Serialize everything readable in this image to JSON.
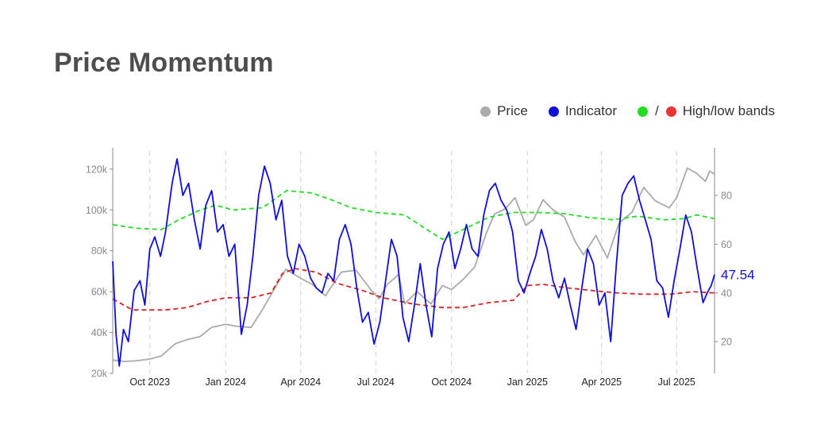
{
  "title": "Price Momentum",
  "legend": {
    "price": "Price",
    "indicator": "Indicator",
    "bands_sep": "/",
    "bands": "High/low bands"
  },
  "colors": {
    "price": "#aaaaaa",
    "indicator": "#0d10d4",
    "high_band": "#22dd22",
    "low_band": "#dd2222",
    "grid": "#d0d0d0"
  },
  "chart_data": {
    "type": "line",
    "x_start": "2023-08-17",
    "x_end": "2025-08-16",
    "x_ticks": [
      {
        "date": "2023-10-01",
        "label": "Oct 2023"
      },
      {
        "date": "2024-01-01",
        "label": "Jan 2024"
      },
      {
        "date": "2024-04-01",
        "label": "Apr 2024"
      },
      {
        "date": "2024-07-01",
        "label": "Jul 2024"
      },
      {
        "date": "2024-10-01",
        "label": "Oct 2024"
      },
      {
        "date": "2025-01-01",
        "label": "Jan 2025"
      },
      {
        "date": "2025-04-01",
        "label": "Apr 2025"
      },
      {
        "date": "2025-07-01",
        "label": "Jul 2025"
      }
    ],
    "y_left": {
      "ylim": [
        20000,
        125000
      ],
      "ticks": [
        20000,
        40000,
        60000,
        80000,
        100000,
        120000
      ],
      "tick_labels": [
        "20k",
        "40k",
        "60k",
        "80k",
        "100k",
        "120k"
      ]
    },
    "y_right": {
      "ylim": [
        7,
        95
      ],
      "ticks": [
        20,
        40,
        60,
        80
      ],
      "tick_labels": [
        "20",
        "40",
        "60",
        "80"
      ]
    },
    "grid": "vertical dashed at x ticks",
    "legend_position": "top-right",
    "last_value_label": "47.54",
    "series": [
      {
        "name": "Price",
        "axis": "left",
        "points": [
          [
            "2023-08-17",
            26500
          ],
          [
            "2023-09-01",
            25800
          ],
          [
            "2023-09-15",
            26200
          ],
          [
            "2023-10-01",
            27000
          ],
          [
            "2023-10-15",
            28500
          ],
          [
            "2023-11-01",
            34500
          ],
          [
            "2023-11-15",
            36500
          ],
          [
            "2023-12-01",
            38000
          ],
          [
            "2023-12-15",
            42500
          ],
          [
            "2024-01-01",
            44000
          ],
          [
            "2024-01-15",
            43000
          ],
          [
            "2024-02-01",
            42500
          ],
          [
            "2024-02-15",
            51500
          ],
          [
            "2024-03-01",
            62000
          ],
          [
            "2024-03-14",
            71000
          ],
          [
            "2024-04-01",
            66500
          ],
          [
            "2024-04-15",
            63500
          ],
          [
            "2024-05-01",
            58000
          ],
          [
            "2024-05-20",
            69500
          ],
          [
            "2024-06-07",
            70500
          ],
          [
            "2024-06-25",
            61000
          ],
          [
            "2024-07-05",
            56500
          ],
          [
            "2024-07-15",
            63500
          ],
          [
            "2024-07-29",
            68500
          ],
          [
            "2024-08-05",
            54000
          ],
          [
            "2024-08-20",
            60000
          ],
          [
            "2024-09-06",
            54000
          ],
          [
            "2024-09-20",
            63000
          ],
          [
            "2024-10-01",
            61000
          ],
          [
            "2024-10-15",
            66000
          ],
          [
            "2024-10-29",
            72000
          ],
          [
            "2024-11-12",
            88500
          ],
          [
            "2024-11-22",
            98000
          ],
          [
            "2024-12-05",
            100500
          ],
          [
            "2024-12-17",
            106000
          ],
          [
            "2024-12-30",
            92500
          ],
          [
            "2025-01-08",
            95000
          ],
          [
            "2025-01-20",
            105000
          ],
          [
            "2025-02-01",
            100000
          ],
          [
            "2025-02-15",
            96500
          ],
          [
            "2025-02-28",
            84500
          ],
          [
            "2025-03-10",
            78000
          ],
          [
            "2025-03-25",
            87500
          ],
          [
            "2025-04-08",
            76500
          ],
          [
            "2025-04-22",
            93500
          ],
          [
            "2025-05-08",
            99000
          ],
          [
            "2025-05-22",
            111000
          ],
          [
            "2025-06-05",
            104500
          ],
          [
            "2025-06-22",
            101000
          ],
          [
            "2025-07-01",
            106000
          ],
          [
            "2025-07-14",
            120500
          ],
          [
            "2025-07-25",
            118000
          ],
          [
            "2025-08-05",
            114000
          ],
          [
            "2025-08-10",
            119000
          ],
          [
            "2025-08-16",
            117500
          ]
        ]
      },
      {
        "name": "Indicator",
        "axis": "right",
        "points": [
          [
            "2023-08-17",
            53
          ],
          [
            "2023-08-21",
            23
          ],
          [
            "2023-08-25",
            10
          ],
          [
            "2023-08-30",
            25
          ],
          [
            "2023-09-05",
            20
          ],
          [
            "2023-09-12",
            41
          ],
          [
            "2023-09-19",
            45
          ],
          [
            "2023-09-25",
            35
          ],
          [
            "2023-10-01",
            58
          ],
          [
            "2023-10-07",
            63
          ],
          [
            "2023-10-14",
            55
          ],
          [
            "2023-10-20",
            65
          ],
          [
            "2023-10-28",
            85
          ],
          [
            "2023-11-03",
            95
          ],
          [
            "2023-11-10",
            80
          ],
          [
            "2023-11-17",
            85
          ],
          [
            "2023-11-24",
            70
          ],
          [
            "2023-12-01",
            58
          ],
          [
            "2023-12-08",
            76
          ],
          [
            "2023-12-15",
            82
          ],
          [
            "2023-12-22",
            65
          ],
          [
            "2023-12-29",
            68
          ],
          [
            "2024-01-05",
            55
          ],
          [
            "2024-01-12",
            60
          ],
          [
            "2024-01-20",
            23
          ],
          [
            "2024-01-27",
            35
          ],
          [
            "2024-02-03",
            55
          ],
          [
            "2024-02-10",
            80
          ],
          [
            "2024-02-17",
            92
          ],
          [
            "2024-02-24",
            85
          ],
          [
            "2024-03-02",
            70
          ],
          [
            "2024-03-09",
            78
          ],
          [
            "2024-03-16",
            55
          ],
          [
            "2024-03-23",
            48
          ],
          [
            "2024-03-30",
            60
          ],
          [
            "2024-04-06",
            55
          ],
          [
            "2024-04-13",
            46
          ],
          [
            "2024-04-20",
            42
          ],
          [
            "2024-04-27",
            40
          ],
          [
            "2024-05-04",
            48
          ],
          [
            "2024-05-11",
            45
          ],
          [
            "2024-05-18",
            62
          ],
          [
            "2024-05-25",
            68
          ],
          [
            "2024-06-01",
            60
          ],
          [
            "2024-06-08",
            42
          ],
          [
            "2024-06-15",
            28
          ],
          [
            "2024-06-22",
            32
          ],
          [
            "2024-06-29",
            19
          ],
          [
            "2024-07-06",
            28
          ],
          [
            "2024-07-13",
            45
          ],
          [
            "2024-07-20",
            62
          ],
          [
            "2024-07-27",
            55
          ],
          [
            "2024-08-03",
            30
          ],
          [
            "2024-08-10",
            20
          ],
          [
            "2024-08-17",
            35
          ],
          [
            "2024-08-24",
            52
          ],
          [
            "2024-08-31",
            35
          ],
          [
            "2024-09-07",
            22
          ],
          [
            "2024-09-14",
            50
          ],
          [
            "2024-09-21",
            60
          ],
          [
            "2024-09-28",
            65
          ],
          [
            "2024-10-05",
            50
          ],
          [
            "2024-10-12",
            58
          ],
          [
            "2024-10-19",
            68
          ],
          [
            "2024-10-26",
            58
          ],
          [
            "2024-11-02",
            55
          ],
          [
            "2024-11-09",
            72
          ],
          [
            "2024-11-16",
            82
          ],
          [
            "2024-11-23",
            85
          ],
          [
            "2024-11-30",
            78
          ],
          [
            "2024-12-07",
            74
          ],
          [
            "2024-12-14",
            65
          ],
          [
            "2024-12-21",
            45
          ],
          [
            "2024-12-28",
            40
          ],
          [
            "2025-01-04",
            48
          ],
          [
            "2025-01-11",
            55
          ],
          [
            "2025-01-18",
            66
          ],
          [
            "2025-01-25",
            58
          ],
          [
            "2025-02-01",
            45
          ],
          [
            "2025-02-08",
            38
          ],
          [
            "2025-02-15",
            46
          ],
          [
            "2025-02-22",
            35
          ],
          [
            "2025-03-01",
            25
          ],
          [
            "2025-03-08",
            42
          ],
          [
            "2025-03-15",
            58
          ],
          [
            "2025-03-22",
            52
          ],
          [
            "2025-03-29",
            35
          ],
          [
            "2025-04-05",
            40
          ],
          [
            "2025-04-12",
            20
          ],
          [
            "2025-04-19",
            52
          ],
          [
            "2025-04-26",
            80
          ],
          [
            "2025-05-03",
            85
          ],
          [
            "2025-05-10",
            88
          ],
          [
            "2025-05-17",
            78
          ],
          [
            "2025-05-24",
            70
          ],
          [
            "2025-05-31",
            62
          ],
          [
            "2025-06-07",
            45
          ],
          [
            "2025-06-14",
            42
          ],
          [
            "2025-06-21",
            30
          ],
          [
            "2025-06-28",
            45
          ],
          [
            "2025-07-05",
            58
          ],
          [
            "2025-07-12",
            72
          ],
          [
            "2025-07-19",
            65
          ],
          [
            "2025-07-26",
            50
          ],
          [
            "2025-08-02",
            36
          ],
          [
            "2025-08-07",
            40
          ],
          [
            "2025-08-12",
            43
          ],
          [
            "2025-08-16",
            47.54
          ]
        ]
      },
      {
        "name": "High band",
        "axis": "right",
        "style": "dashed",
        "points": [
          [
            "2023-08-17",
            68
          ],
          [
            "2023-09-15",
            66.5
          ],
          [
            "2023-10-15",
            66
          ],
          [
            "2023-11-05",
            70
          ],
          [
            "2023-12-01",
            74
          ],
          [
            "2023-12-20",
            76
          ],
          [
            "2024-01-10",
            74
          ],
          [
            "2024-02-15",
            75
          ],
          [
            "2024-03-15",
            82
          ],
          [
            "2024-04-15",
            81
          ],
          [
            "2024-05-10",
            78
          ],
          [
            "2024-06-01",
            75
          ],
          [
            "2024-07-01",
            73
          ],
          [
            "2024-08-05",
            72
          ],
          [
            "2024-09-01",
            66
          ],
          [
            "2024-09-20",
            62
          ],
          [
            "2024-10-15",
            66
          ],
          [
            "2024-11-15",
            71
          ],
          [
            "2024-12-15",
            73
          ],
          [
            "2025-01-15",
            73
          ],
          [
            "2025-02-15",
            72.5
          ],
          [
            "2025-03-15",
            71
          ],
          [
            "2025-04-15",
            70
          ],
          [
            "2025-05-15",
            71.5
          ],
          [
            "2025-06-15",
            70
          ],
          [
            "2025-07-10",
            70.5
          ],
          [
            "2025-07-25",
            72
          ],
          [
            "2025-08-16",
            70.5
          ]
        ]
      },
      {
        "name": "Low band",
        "axis": "right",
        "style": "dashed",
        "points": [
          [
            "2023-08-17",
            37.5
          ],
          [
            "2023-09-10",
            33
          ],
          [
            "2023-10-20",
            33
          ],
          [
            "2023-11-15",
            34
          ],
          [
            "2023-12-10",
            36.5
          ],
          [
            "2024-01-01",
            38
          ],
          [
            "2024-02-01",
            38
          ],
          [
            "2024-02-25",
            40
          ],
          [
            "2024-03-10",
            48
          ],
          [
            "2024-03-25",
            50
          ],
          [
            "2024-04-20",
            48.5
          ],
          [
            "2024-05-15",
            44
          ],
          [
            "2024-06-15",
            41
          ],
          [
            "2024-07-10",
            38
          ],
          [
            "2024-08-15",
            35.5
          ],
          [
            "2024-09-20",
            34
          ],
          [
            "2024-10-15",
            34
          ],
          [
            "2024-11-15",
            36
          ],
          [
            "2024-12-15",
            37
          ],
          [
            "2025-01-01",
            43
          ],
          [
            "2025-01-20",
            43.5
          ],
          [
            "2025-02-20",
            42
          ],
          [
            "2025-03-20",
            41
          ],
          [
            "2025-04-20",
            40
          ],
          [
            "2025-05-20",
            39.5
          ],
          [
            "2025-06-25",
            39.5
          ],
          [
            "2025-07-20",
            40.5
          ],
          [
            "2025-08-16",
            40
          ]
        ]
      }
    ]
  }
}
